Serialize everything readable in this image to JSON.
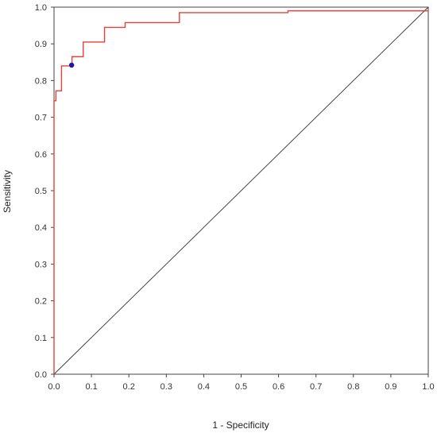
{
  "chart_data": {
    "type": "line",
    "title": "",
    "xlabel": "1 - Specificity",
    "ylabel": "Sensitivity",
    "xlim": [
      0,
      1
    ],
    "ylim": [
      0,
      1
    ],
    "x_ticks": [
      "0.0",
      "0.1",
      "0.2",
      "0.3",
      "0.4",
      "0.5",
      "0.6",
      "0.7",
      "0.8",
      "0.9",
      "1.0"
    ],
    "y_ticks": [
      "0.0",
      "0.1",
      "0.2",
      "0.3",
      "0.4",
      "0.5",
      "0.6",
      "0.7",
      "0.8",
      "0.9",
      "1.0"
    ],
    "grid": false,
    "series": [
      {
        "color": "#e8403a",
        "step": true,
        "x": [
          0.0,
          0.0,
          0.005,
          0.005,
          0.02,
          0.02,
          0.048,
          0.048,
          0.078,
          0.078,
          0.135,
          0.135,
          0.19,
          0.19,
          0.335,
          0.335,
          0.625,
          0.625,
          1.0
        ],
        "y": [
          0.0,
          0.745,
          0.745,
          0.772,
          0.772,
          0.84,
          0.84,
          0.865,
          0.865,
          0.905,
          0.905,
          0.945,
          0.945,
          0.958,
          0.958,
          0.985,
          0.985,
          0.99,
          0.99
        ]
      },
      {
        "color": "#333333",
        "x": [
          0,
          1
        ],
        "y": [
          0,
          1
        ]
      }
    ],
    "highlight_point": {
      "x": 0.047,
      "y": 0.842,
      "color": "#1a1aa6"
    }
  }
}
